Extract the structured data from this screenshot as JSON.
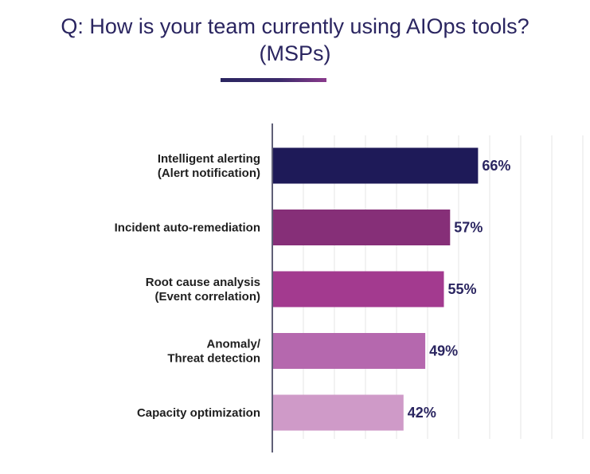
{
  "title": {
    "line1": "Q: How is your team currently using AIOps tools?",
    "line2": "(MSPs)"
  },
  "chart_data": {
    "type": "bar",
    "orientation": "horizontal",
    "categories": [
      [
        "Intelligent alerting",
        "(Alert notification)"
      ],
      [
        "Incident auto-remediation"
      ],
      [
        "Root cause analysis",
        "(Event correlation)"
      ],
      [
        "Anomaly/",
        "Threat detection"
      ],
      [
        "Capacity optimization"
      ]
    ],
    "values": [
      66,
      57,
      55,
      49,
      42
    ],
    "value_labels": [
      "66%",
      "57%",
      "55%",
      "49%",
      "42%"
    ],
    "bar_colors": [
      "#1e1a58",
      "#862f78",
      "#a33a8f",
      "#b568ae",
      "#cf9ac8"
    ],
    "xlim": [
      0,
      100
    ],
    "grid": true,
    "legend": "none"
  }
}
